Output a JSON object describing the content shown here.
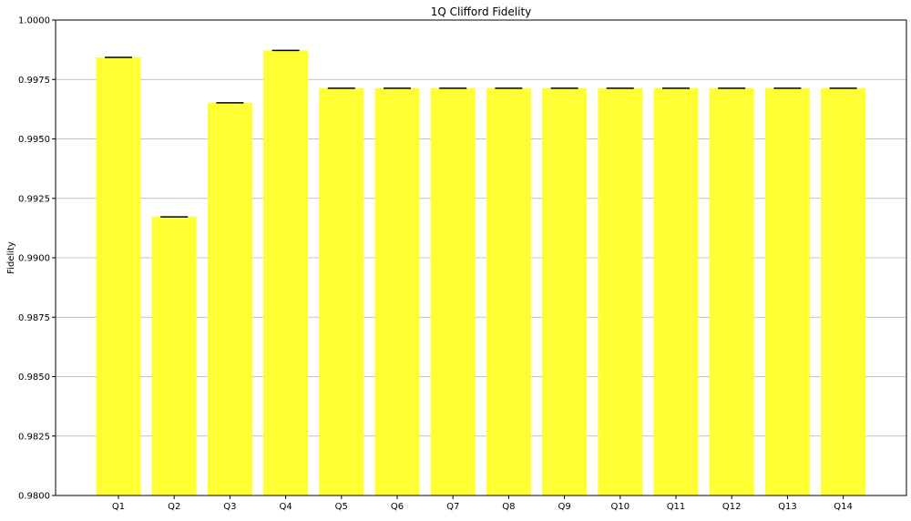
{
  "chart_data": {
    "type": "bar",
    "title": "1Q Clifford Fidelity",
    "xlabel": "",
    "ylabel": "Fidelity",
    "categories": [
      "Q1",
      "Q2",
      "Q3",
      "Q4",
      "Q5",
      "Q6",
      "Q7",
      "Q8",
      "Q9",
      "Q10",
      "Q11",
      "Q12",
      "Q13",
      "Q14"
    ],
    "values": [
      0.99843,
      0.99172,
      0.99652,
      0.99872,
      0.99713,
      0.99713,
      0.99713,
      0.99713,
      0.99713,
      0.99713,
      0.99713,
      0.99713,
      0.99713,
      0.99713
    ],
    "ylim": [
      0.98,
      1.0
    ],
    "yticks": [
      "0.9800",
      "0.9825",
      "0.9850",
      "0.9875",
      "0.9900",
      "0.9925",
      "0.9950",
      "0.9975",
      "1.0000"
    ],
    "ytick_values": [
      0.98,
      0.9825,
      0.985,
      0.9875,
      0.99,
      0.9925,
      0.995,
      0.9975,
      1.0
    ],
    "grid": "horizontal",
    "error_caps": true,
    "bar_color": "#ffff33",
    "error_color": "#000000",
    "grid_color": "#b0b0b0"
  }
}
